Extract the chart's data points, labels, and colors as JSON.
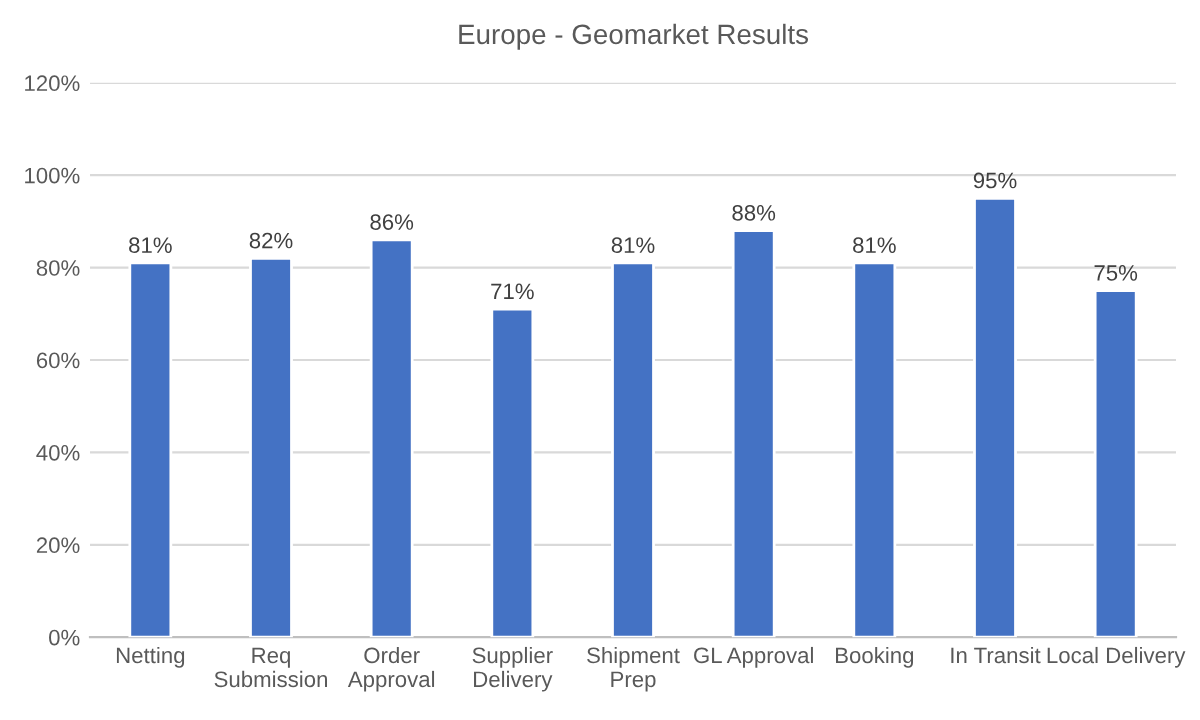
{
  "chart_data": {
    "type": "bar",
    "title": "Europe - Geomarket Results",
    "categories": [
      "Netting",
      "Req\nSubmission",
      "Order\nApproval",
      "Supplier\nDelivery",
      "Shipment\nPrep",
      "GL Approval",
      "Booking",
      "In Transit",
      "Local Delivery"
    ],
    "values": [
      81,
      82,
      86,
      71,
      81,
      88,
      81,
      95,
      75
    ],
    "value_labels": [
      "81%",
      "82%",
      "86%",
      "71%",
      "81%",
      "88%",
      "81%",
      "95%",
      "75%"
    ],
    "color": "#4472c4",
    "ylim": [
      0,
      120
    ],
    "yticks": [
      {
        "value": 0,
        "label": "0%"
      },
      {
        "value": 20,
        "label": "20%"
      },
      {
        "value": 40,
        "label": "40%"
      },
      {
        "value": 60,
        "label": "60%"
      },
      {
        "value": 80,
        "label": "80%"
      },
      {
        "value": 100,
        "label": "100%"
      },
      {
        "value": 120,
        "label": "120%"
      }
    ],
    "grid": "y"
  }
}
